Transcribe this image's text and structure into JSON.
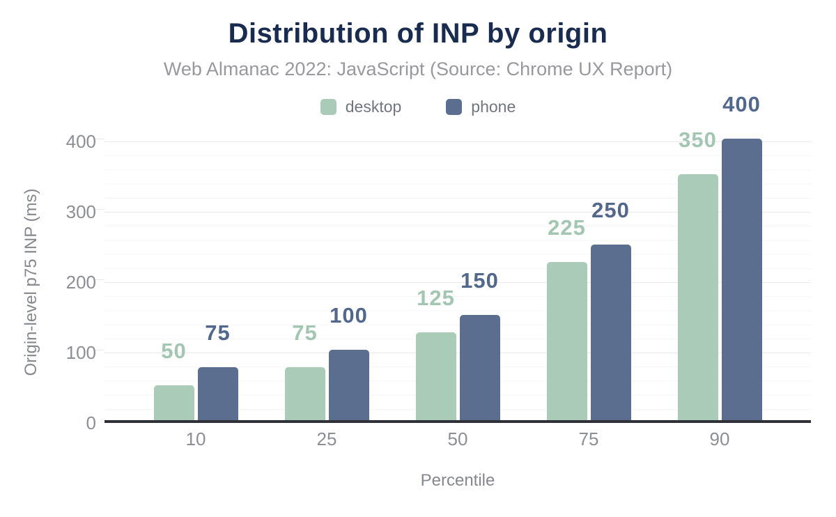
{
  "chart_data": {
    "type": "bar",
    "title": "Distribution of INP by origin",
    "subtitle": "Web Almanac 2022: JavaScript (Source: Chrome UX Report)",
    "xlabel": "Percentile",
    "ylabel": "Origin-level p75 INP (ms)",
    "categories": [
      "10",
      "25",
      "50",
      "75",
      "90"
    ],
    "series": [
      {
        "name": "desktop",
        "color": "#a9cbb7",
        "label_color": "#a2c6b1",
        "values": [
          50,
          75,
          125,
          225,
          350
        ]
      },
      {
        "name": "phone",
        "color": "#5b6e90",
        "label_color": "#52678c",
        "values": [
          75,
          100,
          150,
          250,
          400
        ]
      }
    ],
    "ylim": [
      0,
      400
    ],
    "y_ticks": [
      0,
      100,
      200,
      300,
      400
    ],
    "minor_grid_step": 20,
    "grid": "horizontal major + minor, light gray",
    "legend_position": "top",
    "value_labels": "above each bar, colored per series"
  },
  "colors": {
    "title": "#192c50",
    "subtitle": "#97999d",
    "legend_text": "#71767c",
    "tick_text": "#8b8f95",
    "axis_title_text": "#84888e",
    "axis_line": "#2e3138",
    "grid_major": "#e9e9ed",
    "grid_minor": "#f5f5f7",
    "background": "#ffffff"
  }
}
